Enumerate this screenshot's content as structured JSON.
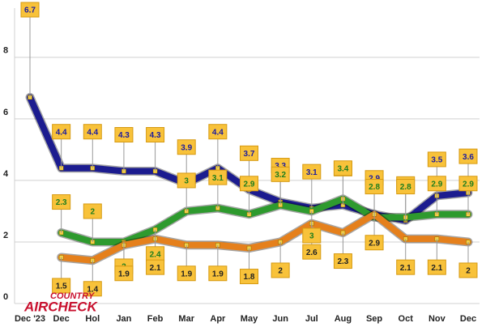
{
  "chart_data": {
    "type": "line",
    "categories": [
      "Dec '23",
      "Dec",
      "Hol",
      "Jan",
      "Feb",
      "Mar",
      "Apr",
      "May",
      "Jun",
      "Jul",
      "Aug",
      "Sep",
      "Oct",
      "Nov",
      "Dec"
    ],
    "series": [
      {
        "name": null,
        "color": "#1c1c8f",
        "values": [
          6.7,
          4.4,
          4.4,
          4.3,
          4.3,
          3.9,
          4.4,
          3.7,
          3.3,
          3.1,
          3.2,
          2.9,
          2.7,
          3.5,
          3.6
        ]
      },
      {
        "name": null,
        "color": "#2e9a2e",
        "values": [
          null,
          2.3,
          2.0,
          2.0,
          2.4,
          3.0,
          3.1,
          2.9,
          3.2,
          3.0,
          3.4,
          2.8,
          2.8,
          2.9,
          2.9
        ]
      },
      {
        "name": null,
        "color": "#e5801c",
        "values": [
          null,
          1.5,
          1.4,
          1.9,
          2.1,
          1.9,
          1.9,
          1.8,
          2.0,
          2.6,
          2.3,
          2.9,
          2.1,
          2.1,
          2.0
        ]
      }
    ],
    "label_colors": [
      "#1c1c9f",
      "#1e7d1e",
      "#222222"
    ],
    "ylim": [
      0,
      9.6
    ],
    "yticks": [
      0,
      2,
      4,
      6,
      8
    ],
    "grid": true,
    "logo": [
      "COUNTRY",
      "AIRCHECK"
    ]
  }
}
